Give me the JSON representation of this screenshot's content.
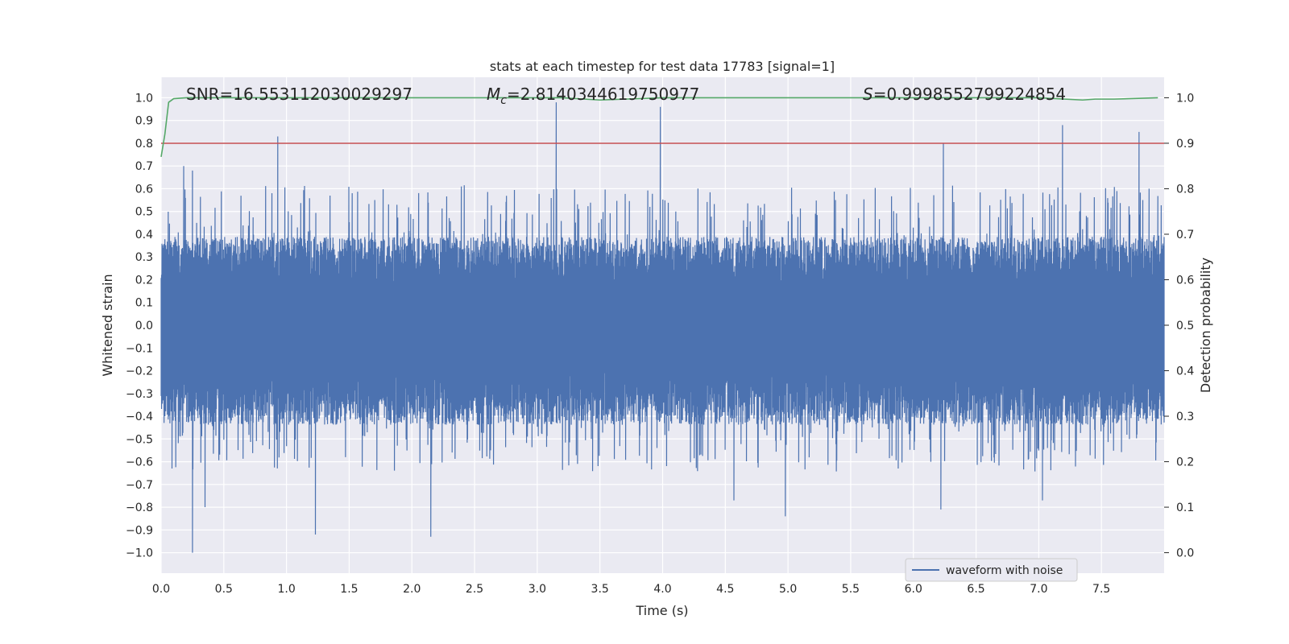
{
  "chart_data": {
    "type": "line",
    "title": "stats at each timestep for test data 17783 [signal=1]",
    "xlabel": "Time (s)",
    "ylabel": "Whitened strain",
    "y2label": "Detection probability",
    "xlim": [
      0.0,
      8.0
    ],
    "ylim": [
      -1.09,
      1.09
    ],
    "y2lim": [
      -0.045,
      1.045
    ],
    "x_ticks": [
      0.0,
      0.5,
      1.0,
      1.5,
      2.0,
      2.5,
      3.0,
      3.5,
      4.0,
      4.5,
      5.0,
      5.5,
      6.0,
      6.5,
      7.0,
      7.5
    ],
    "x_tick_labels": [
      "0.0",
      "0.5",
      "1.0",
      "1.5",
      "2.0",
      "2.5",
      "3.0",
      "3.5",
      "4.0",
      "4.5",
      "5.0",
      "5.5",
      "6.0",
      "6.5",
      "7.0",
      "7.5"
    ],
    "y_ticks": [
      1.0,
      0.9,
      0.8,
      0.7,
      0.6,
      0.5,
      0.4,
      0.3,
      0.2,
      0.1,
      0.0,
      -0.1,
      -0.2,
      -0.3,
      -0.4,
      -0.5,
      -0.6,
      -0.7,
      -0.8,
      -0.9,
      -1.0
    ],
    "y_tick_labels": [
      "1.0",
      "0.9",
      "0.8",
      "0.7",
      "0.6",
      "0.5",
      "0.4",
      "0.3",
      "0.2",
      "0.1",
      "0.0",
      "−0.1",
      "−0.2",
      "−0.3",
      "−0.4",
      "−0.5",
      "−0.6",
      "−0.7",
      "−0.8",
      "−0.9",
      "−1.0"
    ],
    "y2_ticks": [
      1.0,
      0.9,
      0.8,
      0.7,
      0.6,
      0.5,
      0.4,
      0.3,
      0.2,
      0.1,
      0.0
    ],
    "y2_tick_labels": [
      "1.0",
      "0.9",
      "0.8",
      "0.7",
      "0.6",
      "0.5",
      "0.4",
      "0.3",
      "0.2",
      "0.1",
      "0.0"
    ],
    "grid": true,
    "legend": {
      "entries": [
        "waveform with noise"
      ],
      "location": "lower-right"
    },
    "annotations": {
      "snr": "SNR=16.553112030029297",
      "mc_symbol": "M",
      "mc_sub": "c",
      "mc_value": "=2.8140344619750977",
      "s_symbol": "S",
      "s_value": "=0.9998552799224854"
    },
    "threshold": {
      "axis": "y2",
      "value": 0.9,
      "color": "#c44e52"
    },
    "series": [
      {
        "name": "waveform with noise",
        "axis": "y",
        "color": "#4c72b0",
        "kind": "noisy waveform",
        "upper_envelope_typical": 0.4,
        "lower_envelope_typical": -0.45,
        "peaks": [
          {
            "x": 0.18,
            "y": 0.7
          },
          {
            "x": 0.25,
            "y": 0.68
          },
          {
            "x": 0.93,
            "y": 0.83
          },
          {
            "x": 3.15,
            "y": 0.98
          },
          {
            "x": 3.98,
            "y": 0.96
          },
          {
            "x": 6.24,
            "y": 0.8
          },
          {
            "x": 7.19,
            "y": 0.88
          },
          {
            "x": 7.8,
            "y": 0.85
          }
        ],
        "troughs": [
          {
            "x": 0.25,
            "y": -1.0
          },
          {
            "x": 0.35,
            "y": -0.8
          },
          {
            "x": 1.23,
            "y": -0.92
          },
          {
            "x": 2.15,
            "y": -0.93
          },
          {
            "x": 4.57,
            "y": -0.77
          },
          {
            "x": 4.98,
            "y": -0.84
          },
          {
            "x": 6.22,
            "y": -0.81
          },
          {
            "x": 7.03,
            "y": -0.77
          }
        ]
      },
      {
        "name": "detection probability",
        "axis": "y2",
        "color": "#55a868",
        "x": [
          0.0,
          0.03,
          0.06,
          0.1,
          0.2,
          2.5,
          3.2,
          3.5,
          4.0,
          7.0,
          7.35,
          7.45,
          7.6,
          7.95
        ],
        "values": [
          0.87,
          0.92,
          0.99,
          0.998,
          1.0,
          1.0,
          1.0,
          0.995,
          1.0,
          1.0,
          0.995,
          0.997,
          0.997,
          1.0
        ]
      }
    ]
  }
}
